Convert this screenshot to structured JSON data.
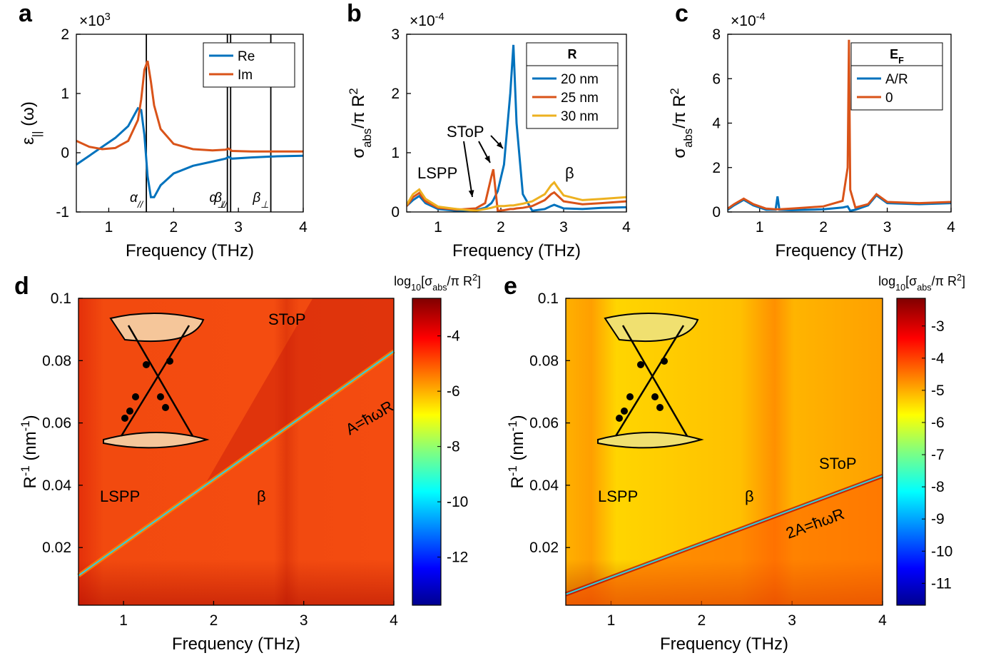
{
  "chart_data": [
    {
      "type": "line",
      "panel": "a",
      "multiplier": [
        {
          "t": "×10"
        },
        {
          "t": "3",
          "s": "super"
        }
      ],
      "xlabel": "Frequency (THz)",
      "ylabel": [
        {
          "t": "ε"
        },
        {
          "t": "||",
          "s": "sub"
        },
        {
          "t": " (ω)"
        }
      ],
      "xlim": [
        0.5,
        4
      ],
      "xticks": [
        1,
        2,
        3,
        4
      ],
      "ylim": [
        -1,
        2
      ],
      "yticks": [
        -1,
        0,
        1,
        2
      ],
      "legend": "upper right",
      "x": [
        0.5,
        0.7,
        0.9,
        1.1,
        1.3,
        1.45,
        1.5,
        1.55,
        1.6,
        1.65,
        1.7,
        1.8,
        2.0,
        2.3,
        2.6,
        2.8,
        2.85,
        2.9,
        3.2,
        3.6,
        4.0
      ],
      "series": [
        {
          "name": "Re",
          "color": "#0072bd",
          "values": [
            -0.2,
            -0.05,
            0.1,
            0.25,
            0.45,
            0.75,
            0.72,
            0.3,
            -0.4,
            -0.75,
            -0.75,
            -0.55,
            -0.35,
            -0.22,
            -0.15,
            -0.1,
            -0.07,
            -0.1,
            -0.08,
            -0.06,
            -0.05
          ]
        },
        {
          "name": "Im",
          "color": "#d95319",
          "values": [
            0.2,
            0.1,
            0.06,
            0.08,
            0.2,
            0.55,
            0.9,
            1.4,
            1.55,
            1.2,
            0.8,
            0.4,
            0.15,
            0.06,
            0.04,
            0.05,
            0.07,
            0.03,
            0.02,
            0.02,
            0.02
          ]
        }
      ],
      "vlines": [
        {
          "x": 1.58,
          "label": [
            {
              "t": "α"
            },
            {
              "t": "//",
              "s": "sub"
            }
          ]
        },
        {
          "x": 2.83,
          "label": [
            {
              "t": "α"
            },
            {
              "t": "⊥",
              "s": "sub"
            }
          ]
        },
        {
          "x": 2.88,
          "label": [
            {
              "t": "β"
            },
            {
              "t": "//",
              "s": "sub"
            }
          ]
        },
        {
          "x": 3.5,
          "label": [
            {
              "t": "β"
            },
            {
              "t": "⊥",
              "s": "sub"
            }
          ]
        }
      ]
    },
    {
      "type": "line",
      "panel": "b",
      "multiplier": [
        {
          "t": "×10"
        },
        {
          "t": "-4",
          "s": "super"
        }
      ],
      "xlabel": "Frequency (THz)",
      "ylabel": [
        {
          "t": "σ"
        },
        {
          "t": "abs",
          "s": "sub"
        },
        {
          "t": "/π R"
        },
        {
          "t": "2",
          "s": "super"
        }
      ],
      "xlim": [
        0.5,
        4
      ],
      "xticks": [
        1,
        2,
        3,
        4
      ],
      "ylim": [
        0,
        3
      ],
      "yticks": [
        0,
        1,
        2,
        3
      ],
      "legend": "upper right",
      "legend_title": [
        {
          "t": "R"
        }
      ],
      "annotations": [
        "LSPP",
        "SToP",
        "β"
      ],
      "x": [
        0.5,
        0.6,
        0.7,
        0.8,
        1.0,
        1.3,
        1.6,
        1.75,
        1.85,
        1.88,
        1.95,
        2.05,
        2.15,
        2.2,
        2.25,
        2.35,
        2.5,
        2.7,
        2.8,
        2.85,
        2.9,
        3.0,
        3.3,
        3.6,
        4.0
      ],
      "series": [
        {
          "name": "20 nm",
          "color": "#0072bd",
          "values": [
            0.1,
            0.2,
            0.27,
            0.15,
            0.05,
            0.02,
            0.03,
            0.07,
            0.15,
            0.2,
            0.35,
            0.8,
            2.0,
            2.82,
            1.5,
            0.3,
            0.02,
            0.05,
            0.1,
            0.12,
            0.1,
            0.06,
            0.05,
            0.07,
            0.08
          ]
        },
        {
          "name": "25 nm",
          "color": "#d95319",
          "values": [
            0.1,
            0.25,
            0.32,
            0.18,
            0.07,
            0.04,
            0.06,
            0.15,
            0.6,
            0.72,
            0.02,
            0.03,
            0.05,
            0.05,
            0.06,
            0.07,
            0.1,
            0.2,
            0.3,
            0.33,
            0.28,
            0.18,
            0.13,
            0.15,
            0.18
          ]
        },
        {
          "name": "30 nm",
          "color": "#edb120",
          "values": [
            0.12,
            0.3,
            0.38,
            0.22,
            0.09,
            0.05,
            0.02,
            0.05,
            0.07,
            0.08,
            0.1,
            0.1,
            0.11,
            0.11,
            0.12,
            0.14,
            0.18,
            0.3,
            0.45,
            0.5,
            0.42,
            0.28,
            0.2,
            0.22,
            0.25
          ]
        }
      ]
    },
    {
      "type": "line",
      "panel": "c",
      "multiplier": [
        {
          "t": "×10"
        },
        {
          "t": "-4",
          "s": "super"
        }
      ],
      "xlabel": "Frequency (THz)",
      "ylabel": [
        {
          "t": "σ"
        },
        {
          "t": "abs",
          "s": "sub"
        },
        {
          "t": "/π R"
        },
        {
          "t": "2",
          "s": "super"
        }
      ],
      "xlim": [
        0.5,
        4
      ],
      "xticks": [
        1,
        2,
        3,
        4
      ],
      "ylim": [
        0,
        8
      ],
      "yticks": [
        0,
        2,
        4,
        6,
        8
      ],
      "legend": "upper right",
      "legend_title": [
        {
          "t": "E"
        },
        {
          "t": "F",
          "s": "sub"
        }
      ],
      "x": [
        0.5,
        0.6,
        0.75,
        0.9,
        1.1,
        1.25,
        1.28,
        1.31,
        1.5,
        2.0,
        2.3,
        2.38,
        2.4,
        2.42,
        2.5,
        2.7,
        2.83,
        3.0,
        3.5,
        4.0
      ],
      "series": [
        {
          "name": "A/R",
          "color": "#0072bd",
          "values": [
            0.1,
            0.3,
            0.55,
            0.3,
            0.1,
            0.1,
            0.7,
            0.1,
            0.08,
            0.12,
            0.2,
            0.25,
            0.15,
            0.05,
            0.1,
            0.3,
            0.75,
            0.4,
            0.35,
            0.4
          ]
        },
        {
          "name": "0",
          "color": "#d95319",
          "values": [
            0.15,
            0.35,
            0.6,
            0.35,
            0.15,
            0.12,
            0.12,
            0.12,
            0.15,
            0.25,
            0.5,
            2.0,
            7.75,
            1.0,
            0.2,
            0.35,
            0.8,
            0.45,
            0.4,
            0.45
          ]
        }
      ]
    },
    {
      "type": "heatmap",
      "panel": "d",
      "xlabel": "Frequency (THz)",
      "ylabel": [
        {
          "t": "R"
        },
        {
          "t": "-1",
          "s": "super"
        },
        {
          "t": " (nm"
        },
        {
          "t": "-1",
          "s": "super"
        },
        {
          "t": ")"
        }
      ],
      "xlim": [
        0.5,
        4
      ],
      "xticks": [
        1,
        2,
        3,
        4
      ],
      "ylim": [
        0.0015,
        0.1
      ],
      "yticks": [
        0.02,
        0.04,
        0.06,
        0.08,
        0.1
      ],
      "clabel": [
        {
          "t": "log"
        },
        {
          "t": "10",
          "s": "sub"
        },
        {
          "t": "[σ"
        },
        {
          "t": "abs",
          "s": "sub"
        },
        {
          "t": "/π R"
        },
        {
          "t": "2",
          "s": "super"
        },
        {
          "t": "]"
        }
      ],
      "clim": [
        -13.74,
        -2.64
      ],
      "cticks": [
        -12,
        -10,
        -8,
        -6,
        -4
      ],
      "annotations": [
        "SToP",
        "A=ħωR",
        "LSPP",
        "β"
      ],
      "resonance": {
        "x": [
          0.5,
          4
        ],
        "y": [
          0.011,
          0.083
        ]
      }
    },
    {
      "type": "heatmap",
      "panel": "e",
      "xlabel": "Frequency (THz)",
      "ylabel": [
        {
          "t": "R"
        },
        {
          "t": "-1",
          "s": "super"
        },
        {
          "t": " (nm"
        },
        {
          "t": "-1",
          "s": "super"
        },
        {
          "t": ")"
        }
      ],
      "xlim": [
        0.5,
        4
      ],
      "xticks": [
        1,
        2,
        3,
        4
      ],
      "ylim": [
        0.0015,
        0.1
      ],
      "yticks": [
        0.02,
        0.04,
        0.06,
        0.08,
        0.1
      ],
      "clabel": [
        {
          "t": "log"
        },
        {
          "t": "10",
          "s": "sub"
        },
        {
          "t": "[σ"
        },
        {
          "t": "abs",
          "s": "sub"
        },
        {
          "t": "/π R"
        },
        {
          "t": "2",
          "s": "super"
        },
        {
          "t": "]"
        }
      ],
      "clim": [
        -11.68,
        -2.14
      ],
      "cticks": [
        -11,
        -10,
        -9,
        -8,
        -7,
        -6,
        -5,
        -4,
        -3
      ],
      "annotations": [
        "SToP",
        "2A=ħωR",
        "LSPP",
        "β"
      ],
      "resonance": {
        "x": [
          0.5,
          4
        ],
        "y": [
          0.005,
          0.043
        ]
      }
    }
  ]
}
